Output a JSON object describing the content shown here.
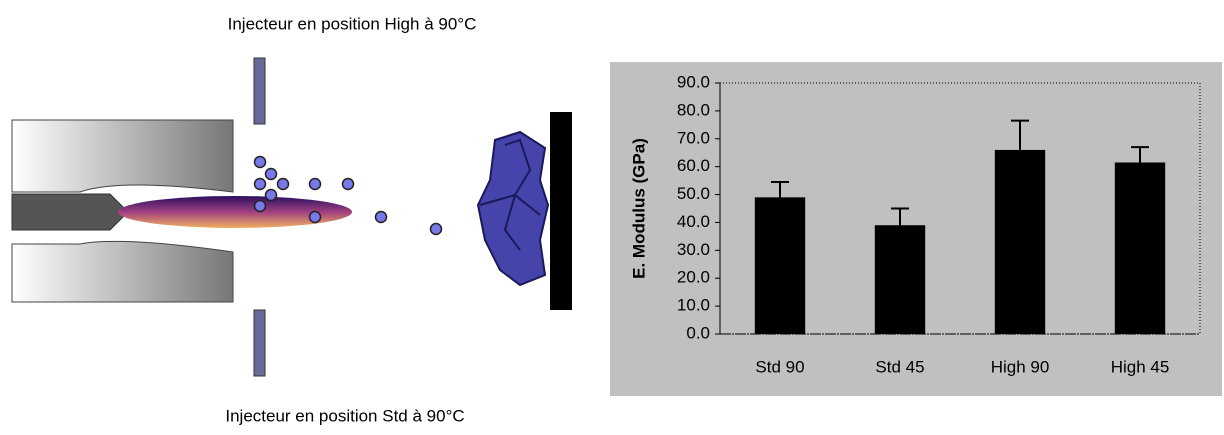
{
  "diagram": {
    "top_label": "Injecteur en position High à 90°C",
    "bottom_label": "Injecteur en position Std à 90°C"
  },
  "chart_data": {
    "type": "bar",
    "ylabel": "E. Modulus (GPa)",
    "categories": [
      "Std 90",
      "Std 45",
      "High 90",
      "High 45"
    ],
    "values": [
      49,
      39,
      66,
      61.5
    ],
    "errors": [
      5.5,
      6,
      10.5,
      5.5
    ],
    "color": "#000000",
    "ylim": [
      0,
      90
    ],
    "yticks": [
      {
        "value": 0,
        "label": "0.0"
      },
      {
        "value": 10,
        "label": "10.0"
      },
      {
        "value": 20,
        "label": "20.0"
      },
      {
        "value": 30,
        "label": "30.0"
      },
      {
        "value": 40,
        "label": "40.0"
      },
      {
        "value": 50,
        "label": "50.0"
      },
      {
        "value": 60,
        "label": "60.0"
      },
      {
        "value": 70,
        "label": "70.0"
      },
      {
        "value": 80,
        "label": "80.0"
      },
      {
        "value": 90,
        "label": "90.0"
      }
    ]
  }
}
